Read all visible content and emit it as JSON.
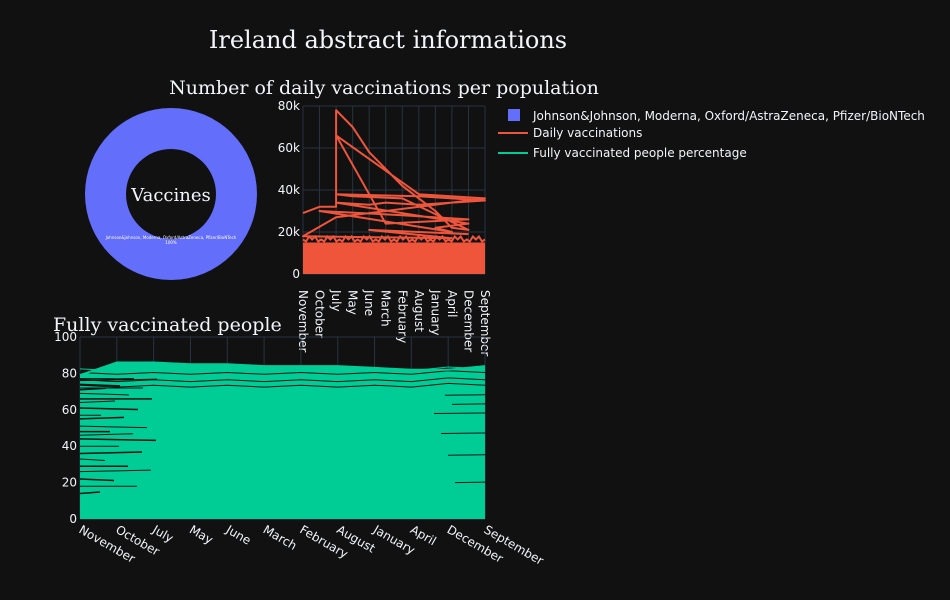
{
  "title": "Ireland abstract informations",
  "colors": {
    "background": "#111111",
    "pie": "#636efa",
    "daily": "#ef553b",
    "fully": "#00cc96",
    "text": "#f2f5fa",
    "grid": "#283442"
  },
  "chart_data": [
    {
      "type": "pie",
      "hole": true,
      "center_label": "Vaccines",
      "slices": [
        {
          "label": "Johnson&Johnson, Moderna, Oxford/AstraZeneca, Pfizer/BioNTech",
          "value": 100,
          "text": "100%"
        }
      ],
      "legend": "top-right"
    },
    {
      "type": "area",
      "title": "Number of daily vaccinations per population",
      "categories": [
        "November",
        "October",
        "July",
        "May",
        "June",
        "March",
        "February",
        "August",
        "January",
        "April",
        "December",
        "September"
      ],
      "ylim": [
        0,
        80000
      ],
      "yticks": [
        0,
        20000,
        40000,
        60000,
        80000
      ],
      "ytick_labels": [
        "0",
        "20k",
        "40k",
        "60k",
        "80k"
      ],
      "grid": true,
      "series": [
        {
          "name": "Daily vaccinations",
          "baseline": 15000,
          "trace": [
            [
              "November",
              29000
            ],
            [
              "October",
              32000
            ],
            [
              "July",
              32000
            ],
            [
              "July",
              78000
            ],
            [
              "May",
              70000
            ],
            [
              "June",
              58000
            ],
            [
              "March",
              50000
            ],
            [
              "February",
              42000
            ],
            [
              "August",
              36000
            ],
            [
              "January",
              30000
            ],
            [
              "April",
              22000
            ],
            [
              "December",
              21000
            ],
            [
              "February",
              36000
            ],
            [
              "May",
              37000
            ],
            [
              "July",
              38000
            ],
            [
              "August",
              37000
            ],
            [
              "September",
              35000
            ],
            [
              "August",
              33000
            ],
            [
              "March",
              34000
            ],
            [
              "June",
              33000
            ],
            [
              "July",
              34000
            ],
            [
              "December",
              24000
            ],
            [
              "January",
              22000
            ],
            [
              "April",
              20000
            ],
            [
              "October",
              30000
            ],
            [
              "February",
              28000
            ],
            [
              "December",
              26000
            ],
            [
              "March",
              24000
            ],
            [
              "July",
              66000
            ],
            [
              "August",
              38000
            ],
            [
              "September",
              36000
            ],
            [
              "July",
              27000
            ],
            [
              "November",
              18000
            ],
            [
              "April",
              17000
            ],
            [
              "June",
              21000
            ],
            [
              "December",
              19000
            ]
          ]
        }
      ]
    },
    {
      "type": "area",
      "title": "Fully vaccinated people",
      "categories": [
        "November",
        "October",
        "July",
        "May",
        "June",
        "March",
        "February",
        "August",
        "January",
        "April",
        "December",
        "September"
      ],
      "ylim": [
        0,
        100
      ],
      "yticks": [
        0,
        20,
        40,
        60,
        80,
        100
      ],
      "grid": true,
      "series": [
        {
          "name": "Fully vaccinated people percentage",
          "top": [
            79,
            86,
            86,
            85,
            85,
            84,
            84,
            84,
            83,
            82,
            82,
            84
          ],
          "lower_envelope": [
            13,
            13,
            80,
            80,
            79,
            79,
            79,
            78,
            78,
            78,
            76,
            24
          ]
        }
      ]
    }
  ],
  "legend": [
    {
      "label": "Johnson&Johnson, Moderna, Oxford/AstraZeneca, Pfizer/BioNTech",
      "kind": "square",
      "color": "#636efa"
    },
    {
      "label": "Daily vaccinations",
      "kind": "line",
      "color": "#ef553b"
    },
    {
      "label": "Fully vaccinated people percentage",
      "kind": "line",
      "color": "#00cc96"
    }
  ]
}
